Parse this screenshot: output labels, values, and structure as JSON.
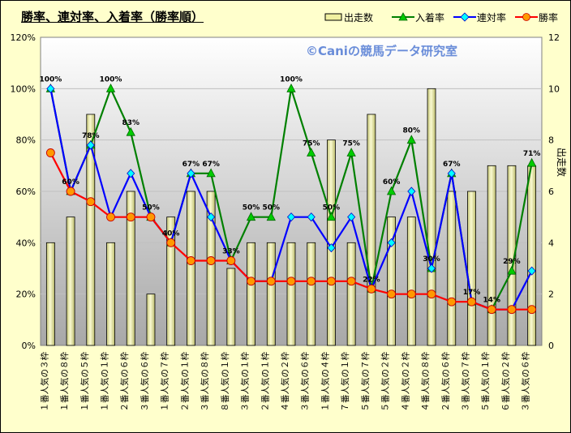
{
  "title": "勝率、連対率、入着率（勝率順）",
  "watermark": "©Caniの競馬データ研究室",
  "legend": {
    "bar": "出走数",
    "place": "入着率",
    "quinella": "連対率",
    "win": "勝率"
  },
  "colors": {
    "frame_bg": "#ffffcc",
    "bar_fill": "#f0f0a0",
    "place_line": "#008000",
    "quinella_line": "#0000ff",
    "quinella_marker": "#00ffff",
    "win_line": "#ff0000",
    "win_marker": "#ff9900"
  },
  "chart_data": {
    "type": "bar",
    "combo": true,
    "categories": [
      "１番人気の３枠",
      "１番人気の８枠",
      "１番人気の５枠",
      "１番人気の１枠",
      "２番人気の６枠",
      "３番人気の６枠",
      "１番人気の７枠",
      "２番人気の１枠",
      "３番人気の８枠",
      "８番人気の１枠",
      "３番人気の１枠",
      "２番人気の１枠",
      "４番人気の２枠",
      "３番人気の６枠",
      "１番人気の４枠",
      "７番人気の１枠",
      "５番人気の７枠",
      "５番人気の２枠",
      "４番人気の２枠",
      "４番人気の８枠",
      "２番人気の６枠",
      "３番人気の７枠",
      "５番人気の１枠",
      "６番人気の２枠",
      "３番人気の６枠"
    ],
    "series": [
      {
        "name": "出走数",
        "kind": "bar",
        "axis": "right",
        "values": [
          4,
          5,
          9,
          4,
          6,
          2,
          5,
          6,
          6,
          3,
          4,
          4,
          4,
          4,
          8,
          4,
          9,
          5,
          5,
          10,
          6,
          6,
          7,
          7,
          7
        ]
      },
      {
        "name": "入着率",
        "kind": "line",
        "axis": "left",
        "values": [
          100,
          60,
          78,
          100,
          83,
          50,
          40,
          67,
          67,
          33,
          50,
          50,
          100,
          75,
          50,
          75,
          22,
          60,
          80,
          30,
          67,
          17,
          14,
          29,
          71
        ]
      },
      {
        "name": "連対率",
        "kind": "line",
        "axis": "left",
        "values": [
          100,
          60,
          78,
          50,
          67,
          50,
          40,
          67,
          50,
          33,
          25,
          25,
          50,
          50,
          38,
          50,
          22,
          40,
          60,
          30,
          67,
          17,
          14,
          14,
          29
        ]
      },
      {
        "name": "勝率",
        "kind": "line",
        "axis": "left",
        "values": [
          75,
          60,
          56,
          50,
          50,
          50,
          40,
          33,
          33,
          33,
          25,
          25,
          25,
          25,
          25,
          25,
          22,
          20,
          20,
          20,
          17,
          17,
          14,
          14,
          14
        ]
      }
    ],
    "data_labels": {
      "series": "入着率",
      "labels": [
        "100%",
        "60%",
        "78%",
        "100%",
        "83%",
        "50%",
        "40%",
        "67%",
        "67%",
        "33%",
        "50%",
        "50%",
        "100%",
        "75%",
        "50%",
        "75%",
        "22%",
        "60%",
        "80%",
        "30%",
        "67%",
        "17%",
        "14%",
        "29%",
        "71%"
      ]
    },
    "left_axis": {
      "ylim": [
        0,
        120
      ],
      "ticks": [
        "0%",
        "20%",
        "40%",
        "60%",
        "80%",
        "100%",
        "120%"
      ]
    },
    "right_axis": {
      "label": "出走数",
      "ylim": [
        0,
        12
      ],
      "ticks": [
        "0",
        "2",
        "4",
        "6",
        "8",
        "10",
        "12"
      ]
    },
    "legend_position": "top-right",
    "grid": true
  }
}
